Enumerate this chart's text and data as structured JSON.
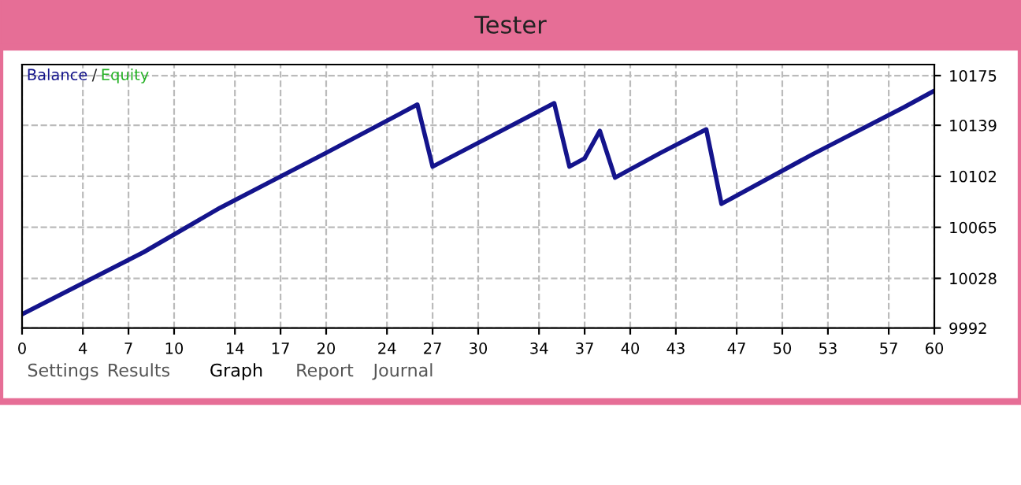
{
  "chart_data": {
    "type": "line",
    "title": "Tester",
    "x": [
      0,
      8,
      13,
      20,
      26,
      27,
      31,
      35,
      36,
      37,
      38,
      39,
      42,
      45,
      46,
      52,
      58,
      60
    ],
    "series": [
      {
        "name": "Balance",
        "color": "#14148c",
        "values": [
          10002,
          10047,
          10079,
          10119,
          10154,
          10109,
          10132,
          10155,
          10109,
          10115,
          10135,
          10101,
          10119,
          10136,
          10082,
          10118,
          10152,
          10164
        ]
      },
      {
        "name": "Equity",
        "color": "#22b022",
        "values": [
          null,
          null,
          null,
          null,
          null,
          null,
          null,
          null,
          null,
          null,
          null,
          null,
          null,
          null,
          null,
          null,
          null,
          null
        ]
      }
    ],
    "xlim": [
      0,
      60
    ],
    "xticks": [
      0,
      4,
      7,
      10,
      14,
      17,
      20,
      24,
      27,
      30,
      34,
      37,
      40,
      43,
      47,
      50,
      53,
      57,
      60
    ],
    "ylim": [
      9992,
      10183
    ],
    "yticks": [
      9992,
      10028,
      10065,
      10102,
      10139,
      10175
    ],
    "grid": true,
    "legend": "top left",
    "marker": "none",
    "line_style": "solid",
    "annotations": [
      "/",
      "Settings",
      "Results",
      "Graph",
      "Report",
      "Journal"
    ]
  }
}
